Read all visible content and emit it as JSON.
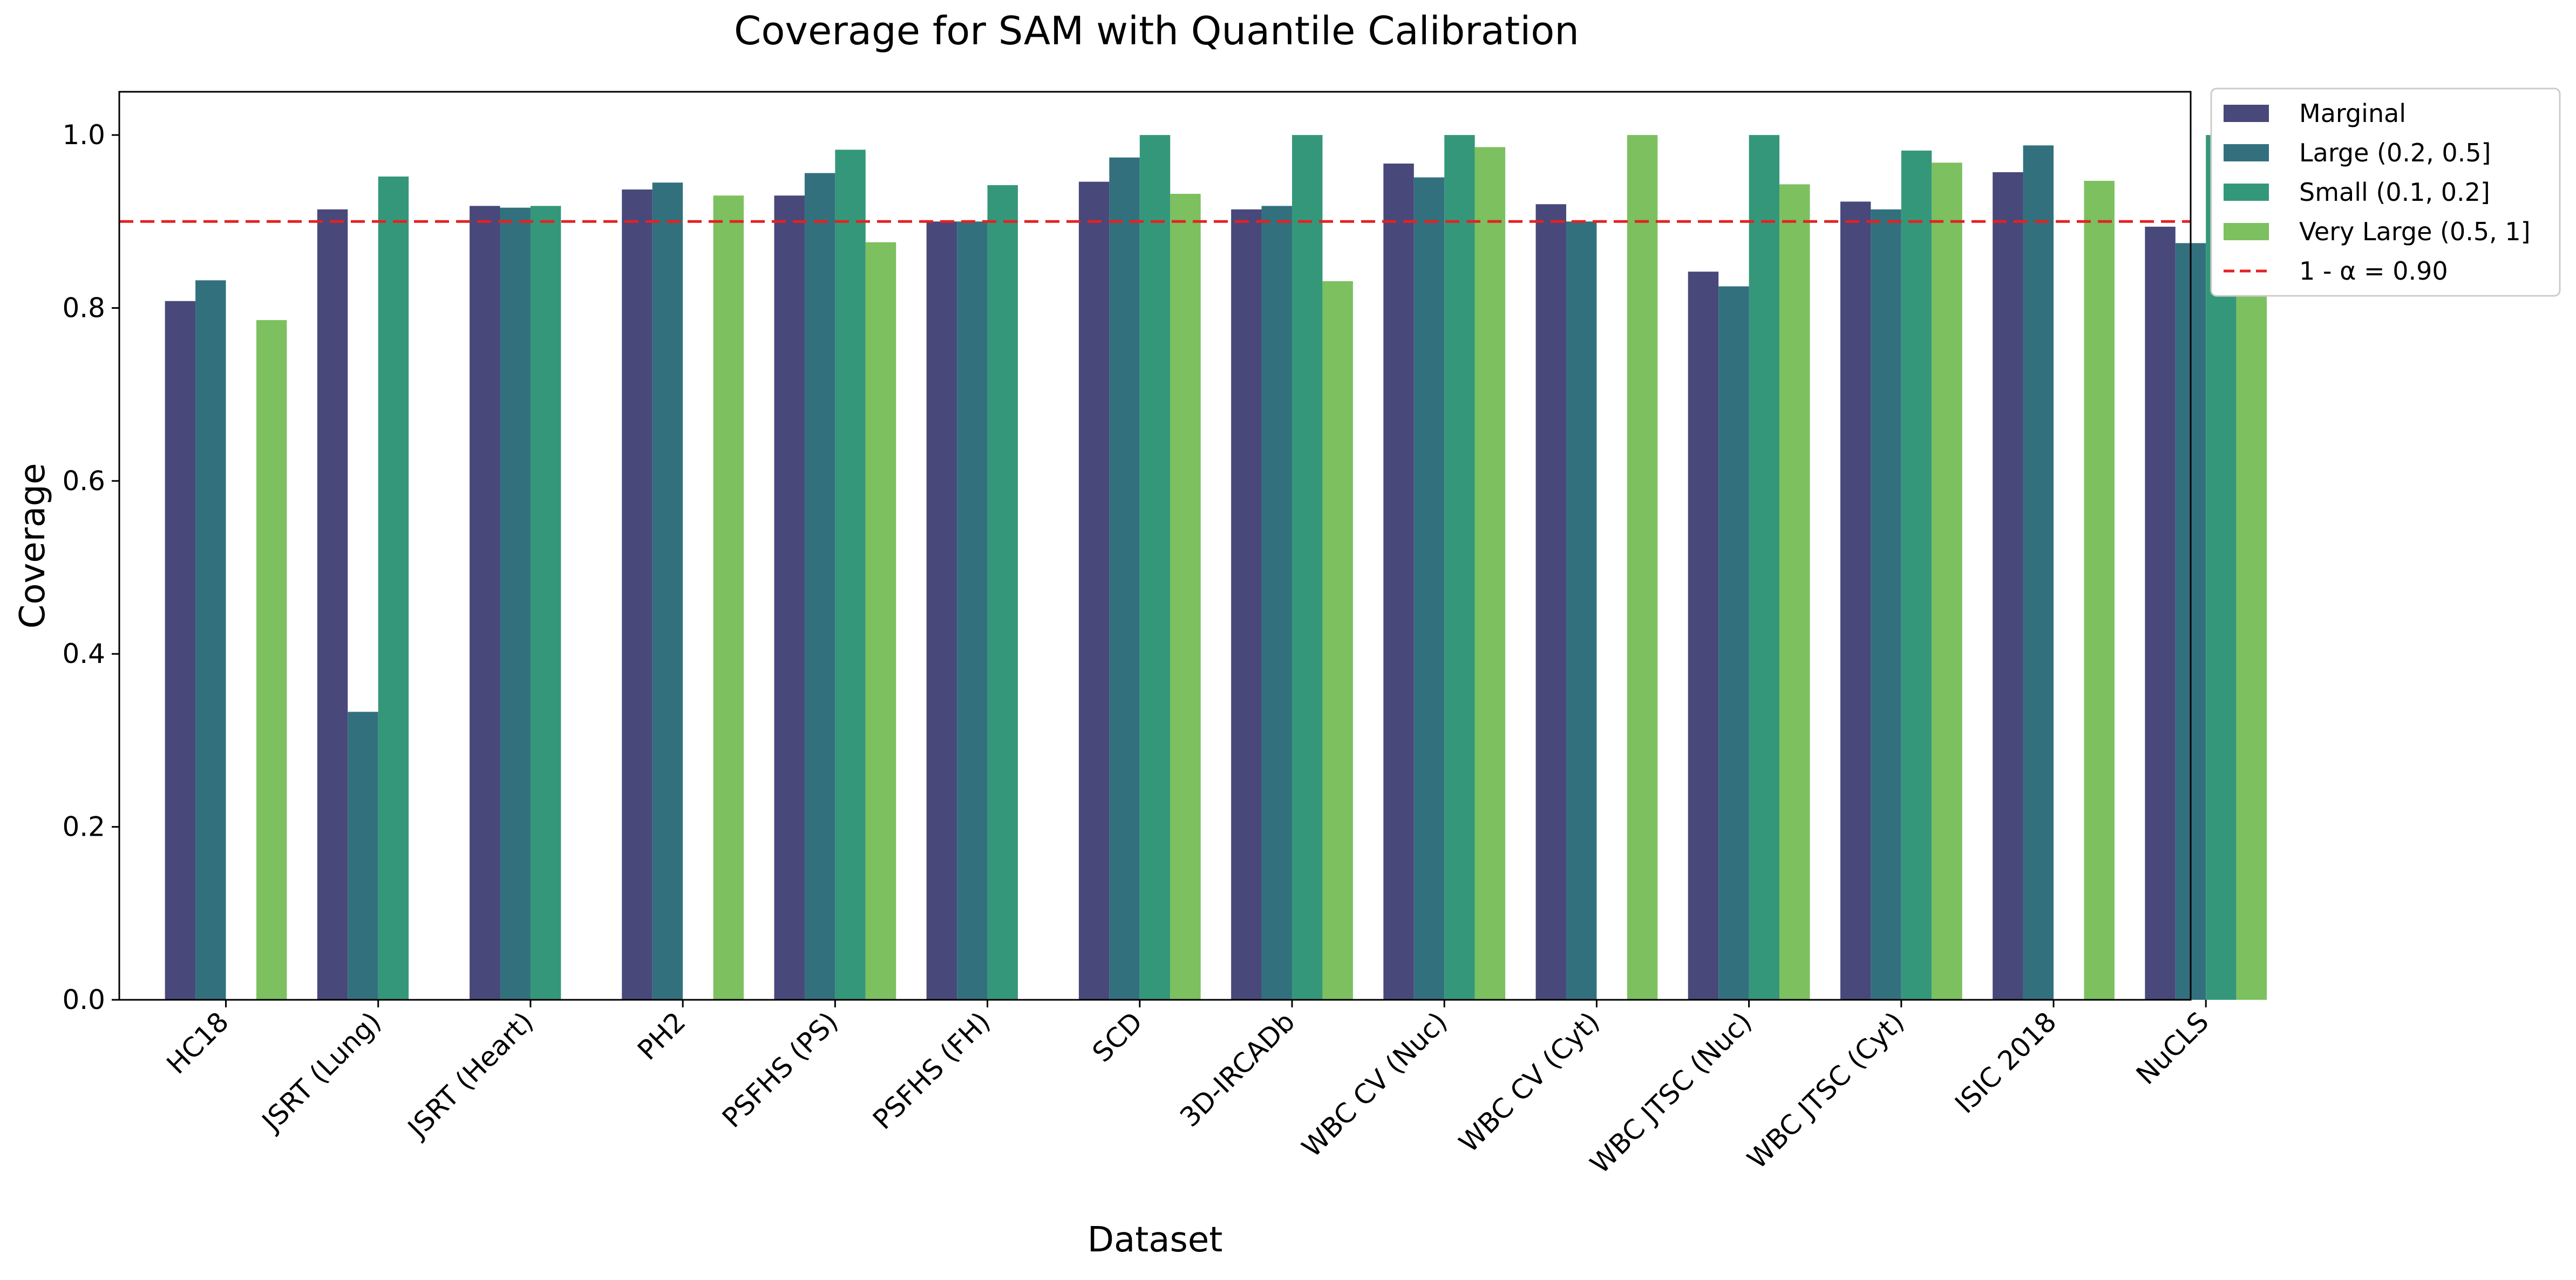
{
  "chart_data": {
    "type": "bar",
    "title": "Coverage for SAM with Quantile Calibration",
    "xlabel": "Dataset",
    "ylabel": "Coverage",
    "ylim": [
      0,
      1.05
    ],
    "yticks": [
      "0.0",
      "0.2",
      "0.4",
      "0.6",
      "0.8",
      "1.0"
    ],
    "categories": [
      "HC18",
      "JSRT (Lung)",
      "JSRT (Heart)",
      "PH2",
      "PSFHS (PS)",
      "PSFHS (FH)",
      "SCD",
      "3D-IRCADb",
      "WBC CV (Nuc)",
      "WBC CV (Cyt)",
      "WBC JTSC (Nuc)",
      "WBC JTSC (Cyt)",
      "ISIC 2018",
      "NuCLS"
    ],
    "series": [
      {
        "name": "Marginal",
        "color": "#48487a",
        "values": [
          0.808,
          0.914,
          0.918,
          0.937,
          0.93,
          0.9,
          0.946,
          0.914,
          0.967,
          0.92,
          0.842,
          0.923,
          0.957,
          0.894
        ]
      },
      {
        "name": "Large (0.2, 0.5]",
        "color": "#33707e",
        "values": [
          0.832,
          0.333,
          0.916,
          0.945,
          0.956,
          0.9,
          0.974,
          0.918,
          0.951,
          0.9,
          0.825,
          0.914,
          0.988,
          0.875
        ]
      },
      {
        "name": "Small (0.1, 0.2]",
        "color": "#35977a",
        "values": [
          null,
          0.952,
          0.918,
          null,
          0.983,
          0.942,
          1.0,
          1.0,
          1.0,
          null,
          1.0,
          0.982,
          null,
          1.0
        ]
      },
      {
        "name": "Very Large (0.5, 1]",
        "color": "#7cc05f",
        "values": [
          0.786,
          null,
          null,
          0.93,
          0.876,
          null,
          0.932,
          0.831,
          0.986,
          1.0,
          0.943,
          0.968,
          0.947,
          0.903
        ]
      }
    ],
    "reference_line": {
      "value": 0.9,
      "label": "1 - α = 0.90",
      "color": "#e32222"
    },
    "legend_position": "outside-top-right",
    "grid": false
  }
}
